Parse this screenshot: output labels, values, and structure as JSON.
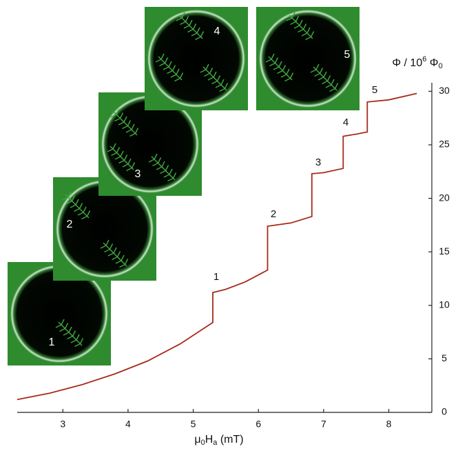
{
  "chart_data": {
    "type": "line",
    "x_label": [
      "μ",
      "0",
      "H",
      "a",
      " (mT)"
    ],
    "y_label": [
      "Φ / 10",
      "6",
      " Φ",
      "0"
    ],
    "x": [
      2.3,
      2.8,
      3.3,
      3.8,
      4.3,
      4.8,
      5.3,
      5.3,
      5.5,
      5.8,
      6.14,
      6.14,
      6.5,
      6.82,
      6.82,
      7.0,
      7.3,
      7.3,
      7.5,
      7.67,
      7.67,
      8.0,
      8.43
    ],
    "values": [
      1.2,
      1.8,
      2.6,
      3.6,
      4.8,
      6.4,
      8.4,
      11.2,
      11.5,
      12.2,
      13.3,
      17.4,
      17.7,
      18.3,
      22.3,
      22.4,
      22.8,
      25.8,
      26.0,
      26.2,
      29.0,
      29.2,
      29.8
    ],
    "color": "#a52a1a",
    "xlim": [
      2.3,
      8.66
    ],
    "xticks": [
      3,
      4,
      5,
      6,
      7,
      8
    ],
    "ylim": [
      0,
      30.8
    ],
    "yticks": [
      0,
      5,
      10,
      15,
      20,
      25,
      30
    ],
    "annotations": [
      "1",
      "2",
      "3",
      "4",
      "5"
    ],
    "insets": [
      {
        "label": "1"
      },
      {
        "label": "2"
      },
      {
        "label": "3"
      },
      {
        "label": "4"
      },
      {
        "label": "5"
      }
    ]
  }
}
